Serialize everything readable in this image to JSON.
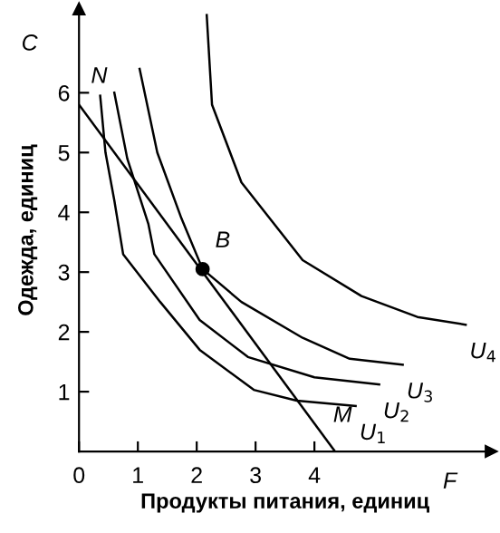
{
  "chart_data": {
    "type": "line",
    "xlabel": "Продукты питания, единиц",
    "ylabel": "Одежда, единиц",
    "xlim": [
      0,
      7
    ],
    "ylim": [
      0,
      7.4
    ],
    "xticks": [
      0,
      1,
      2,
      3,
      4
    ],
    "yticks": [
      1,
      2,
      3,
      4,
      5,
      6
    ],
    "grid": false,
    "marker": "none",
    "line_style": "solid",
    "series": [
      {
        "color": "#000000",
        "x": [
          0.36,
          0.45,
          0.6,
          0.75,
          1.38,
          2.05,
          2.97,
          3.7,
          4.7
        ],
        "values": [
          5.95,
          5.0,
          4.2,
          3.3,
          2.5,
          1.7,
          1.03,
          0.85,
          0.76
        ]
      },
      {
        "color": "#000000",
        "x": [
          0.6,
          0.82,
          1.18,
          1.28,
          2.05,
          2.87,
          4.0,
          5.1
        ],
        "values": [
          6.0,
          4.9,
          3.8,
          3.3,
          2.2,
          1.58,
          1.24,
          1.12
        ]
      },
      {
        "color": "#000000",
        "x": [
          1.03,
          1.33,
          1.74,
          2.1,
          2.76,
          3.8,
          4.6,
          5.5
        ],
        "values": [
          6.4,
          5.0,
          3.9,
          3.05,
          2.5,
          1.9,
          1.55,
          1.45
        ]
      },
      {
        "color": "#000000",
        "x": [
          2.17,
          2.26,
          2.76,
          3.8,
          4.8,
          5.75,
          6.57
        ],
        "values": [
          7.3,
          5.8,
          4.5,
          3.2,
          2.6,
          2.25,
          2.12
        ]
      },
      {
        "color": "#000000",
        "x": [
          0,
          4.35
        ],
        "values": [
          5.8,
          0
        ]
      },
      {
        "type": "scatter",
        "marker": "circle",
        "color": "#000000",
        "x": [
          2.1
        ],
        "values": [
          3.05
        ]
      }
    ],
    "annotations": [
      "C",
      "F",
      {
        "text": "N",
        "x": 0,
        "y": 5.8
      },
      {
        "text": "M",
        "x": 4.35,
        "y": 0
      },
      {
        "text": "B",
        "x": 2.1,
        "y": 3.05
      },
      {
        "text": "U$_{1}$",
        "x": 4.7,
        "y": 0.76
      },
      {
        "text": "U$_{2}$",
        "x": 5.1,
        "y": 1.12
      },
      {
        "text": "U$_{3}$",
        "x": 5.5,
        "y": 1.45
      },
      {
        "text": "U$_{4}$",
        "x": 6.57,
        "y": 2.12
      }
    ]
  }
}
